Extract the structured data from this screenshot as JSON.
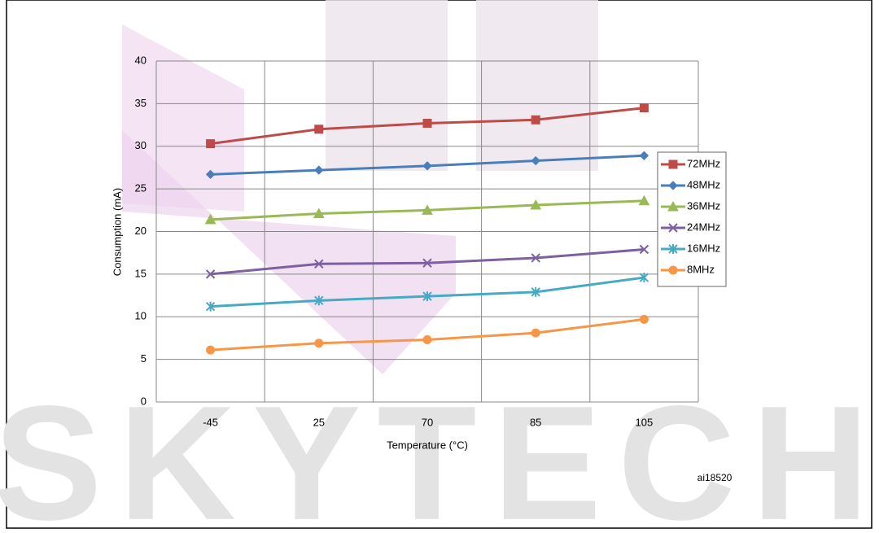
{
  "chart_data": {
    "type": "line",
    "watermark": "SKYTECH",
    "annotation": "ai18520",
    "xlabel": "Temperature (°C)",
    "ylabel": "Consumption (mA)",
    "categories": [
      "-45",
      "25",
      "70",
      "85",
      "105"
    ],
    "ylim": [
      0,
      40
    ],
    "yticks": [
      0,
      5,
      10,
      15,
      20,
      25,
      30,
      35,
      40
    ],
    "grid": true,
    "legend": "right",
    "series": [
      {
        "name": "72MHz",
        "color": "#be4b48",
        "marker": "square",
        "values": [
          30.3,
          32.0,
          32.7,
          33.1,
          34.5
        ]
      },
      {
        "name": "48MHz",
        "color": "#4a7ebb",
        "marker": "diamond",
        "values": [
          26.7,
          27.2,
          27.7,
          28.3,
          28.9
        ]
      },
      {
        "name": "36MHz",
        "color": "#98b954",
        "marker": "triangle",
        "values": [
          21.4,
          22.1,
          22.5,
          23.1,
          23.6
        ]
      },
      {
        "name": "24MHz",
        "color": "#7d60a0",
        "marker": "x",
        "values": [
          15.0,
          16.2,
          16.3,
          16.9,
          17.9
        ]
      },
      {
        "name": "16MHz",
        "color": "#46aac5",
        "marker": "star",
        "values": [
          11.2,
          11.9,
          12.4,
          12.9,
          14.6
        ]
      },
      {
        "name": "8MHz",
        "color": "#f79646",
        "marker": "circle",
        "values": [
          6.1,
          6.9,
          7.3,
          8.1,
          9.7
        ]
      }
    ]
  }
}
